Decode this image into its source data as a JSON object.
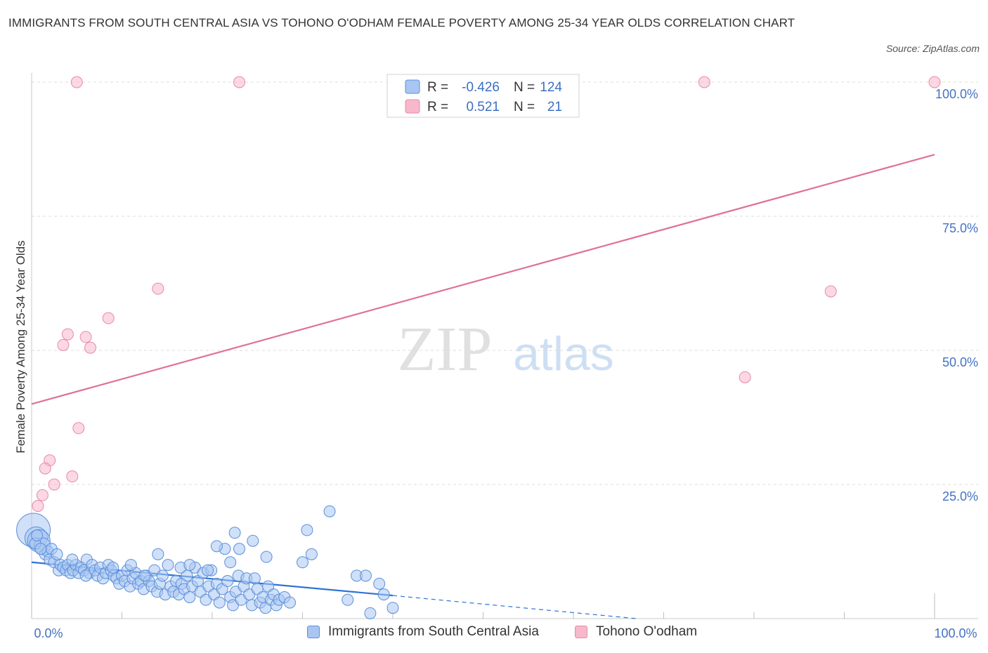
{
  "title": "IMMIGRANTS FROM SOUTH CENTRAL ASIA VS TOHONO O'ODHAM FEMALE POVERTY AMONG 25-34 YEAR OLDS CORRELATION CHART",
  "source": "Source: ZipAtlas.com",
  "watermark": {
    "zip": "ZIP",
    "atlas": "atlas"
  },
  "colors": {
    "blue_fill": "#a9c6f2",
    "blue_stroke": "#5b8fd9",
    "blue_line": "#2e74d6",
    "pink_fill": "#f7b8cc",
    "pink_stroke": "#e98aa8",
    "pink_line": "#e0709a",
    "axis_label": "#4472c4",
    "grid": "#dcdcdc"
  },
  "legend": {
    "rows": [
      {
        "r_label": "R =",
        "r_value": "-0.426",
        "n_label": "N =",
        "n_value": "124"
      },
      {
        "r_label": "R =",
        "r_value": "0.521",
        "n_label": "N =",
        "n_value": "21"
      }
    ]
  },
  "chart_data": {
    "type": "scatter",
    "title": "IMMIGRANTS FROM SOUTH CENTRAL ASIA VS TOHONO O'ODHAM FEMALE POVERTY AMONG 25-34 YEAR OLDS CORRELATION CHART",
    "xlabel": "",
    "ylabel": "Female Poverty Among 25-34 Year Olds",
    "xlim": [
      0,
      100
    ],
    "ylim": [
      0,
      100
    ],
    "x_tick_labels": {
      "min": "0.0%",
      "max": "100.0%"
    },
    "y_ticks": [
      {
        "value": 25,
        "label": "25.0%"
      },
      {
        "value": 50,
        "label": "50.0%"
      },
      {
        "value": 75,
        "label": "75.0%"
      },
      {
        "value": 100,
        "label": "100.0%"
      }
    ],
    "grid": true,
    "series": [
      {
        "name": "Immigrants from South Central Asia",
        "color": "blue",
        "r": -0.426,
        "n": 124,
        "trend": {
          "x0": 0,
          "y0": 10.5,
          "x1": 40,
          "y1": 4.3,
          "dash_to_x": 67,
          "dash_to_y": 0
        },
        "points": [
          [
            0.2,
            16.5,
            3
          ],
          [
            0.5,
            15,
            2
          ],
          [
            0.8,
            14.5,
            2
          ],
          [
            1.2,
            13.5,
            1.5
          ],
          [
            1.5,
            12,
            1
          ],
          [
            1.8,
            12.5,
            1
          ],
          [
            2.0,
            11,
            1
          ],
          [
            2.2,
            13,
            1
          ],
          [
            0.4,
            14,
            1
          ],
          [
            0.6,
            15.5,
            1
          ],
          [
            1.0,
            13,
            1
          ],
          [
            2.5,
            10.5,
            1
          ],
          [
            2.8,
            12,
            1
          ],
          [
            3.0,
            9,
            1
          ],
          [
            3.2,
            10,
            1
          ],
          [
            3.5,
            9.5,
            1
          ],
          [
            3.8,
            9,
            1
          ],
          [
            4.0,
            10,
            1
          ],
          [
            4.3,
            8.5,
            1
          ],
          [
            4.6,
            9,
            1
          ],
          [
            4.9,
            10,
            1
          ],
          [
            5.2,
            8.5,
            1
          ],
          [
            5.5,
            9.5,
            1
          ],
          [
            5.8,
            9,
            1
          ],
          [
            6.1,
            11,
            1
          ],
          [
            6.4,
            8.5,
            1
          ],
          [
            6.7,
            10,
            1
          ],
          [
            7.0,
            9,
            1
          ],
          [
            7.3,
            8,
            1
          ],
          [
            7.6,
            9.5,
            1
          ],
          [
            7.9,
            7.5,
            1
          ],
          [
            8.2,
            8.5,
            1
          ],
          [
            8.5,
            10,
            1
          ],
          [
            8.8,
            9,
            1
          ],
          [
            9.1,
            8,
            1
          ],
          [
            9.4,
            7.5,
            1
          ],
          [
            9.7,
            6.5,
            1
          ],
          [
            10.0,
            8,
            1
          ],
          [
            10.3,
            7,
            1
          ],
          [
            10.6,
            9,
            1
          ],
          [
            10.9,
            6,
            1
          ],
          [
            11.2,
            7.5,
            1
          ],
          [
            11.5,
            8.5,
            1
          ],
          [
            11.8,
            6.5,
            1
          ],
          [
            12.1,
            7,
            1
          ],
          [
            12.4,
            5.5,
            1
          ],
          [
            12.7,
            8,
            1
          ],
          [
            13.0,
            7,
            1
          ],
          [
            13.3,
            6,
            1
          ],
          [
            13.6,
            9,
            1
          ],
          [
            13.9,
            5,
            1
          ],
          [
            14.2,
            6.5,
            1
          ],
          [
            14.5,
            8,
            1
          ],
          [
            14.8,
            4.5,
            1
          ],
          [
            15.1,
            10,
            1
          ],
          [
            15.4,
            6,
            1
          ],
          [
            15.7,
            5,
            1
          ],
          [
            16.0,
            7,
            1
          ],
          [
            16.3,
            4.5,
            1
          ],
          [
            16.6,
            6.5,
            1
          ],
          [
            16.9,
            5.5,
            1
          ],
          [
            17.2,
            8,
            1
          ],
          [
            17.5,
            4,
            1
          ],
          [
            17.8,
            6,
            1
          ],
          [
            18.1,
            9.5,
            1
          ],
          [
            18.4,
            7,
            1
          ],
          [
            18.7,
            5,
            1
          ],
          [
            19.0,
            8.5,
            1
          ],
          [
            19.3,
            3.5,
            1
          ],
          [
            19.6,
            6,
            1
          ],
          [
            19.9,
            9,
            1
          ],
          [
            20.2,
            4.5,
            1
          ],
          [
            20.5,
            6.5,
            1
          ],
          [
            20.8,
            3,
            1
          ],
          [
            21.1,
            5.5,
            1
          ],
          [
            21.4,
            13,
            1
          ],
          [
            21.7,
            7,
            1
          ],
          [
            22.0,
            4,
            1
          ],
          [
            22.3,
            2.5,
            1
          ],
          [
            22.6,
            5,
            1
          ],
          [
            22.9,
            8,
            1
          ],
          [
            23.2,
            3.5,
            1
          ],
          [
            23.5,
            6,
            1
          ],
          [
            23.8,
            7.5,
            1
          ],
          [
            24.1,
            4.5,
            1
          ],
          [
            24.4,
            2.5,
            1
          ],
          [
            24.7,
            7.5,
            1
          ],
          [
            25.0,
            5.5,
            1
          ],
          [
            25.3,
            3,
            1
          ],
          [
            25.6,
            4,
            1
          ],
          [
            25.9,
            2,
            1
          ],
          [
            26.2,
            6,
            1
          ],
          [
            26.5,
            3.5,
            1
          ],
          [
            26.8,
            4.5,
            1
          ],
          [
            27.1,
            2.5,
            1
          ],
          [
            27.4,
            3.5,
            1
          ],
          [
            28.0,
            4,
            1
          ],
          [
            28.6,
            3,
            1
          ],
          [
            22.0,
            10.5,
            1
          ],
          [
            23.0,
            13,
            1
          ],
          [
            26.0,
            11.5,
            1
          ],
          [
            11.0,
            10,
            1
          ],
          [
            14.0,
            12,
            1
          ],
          [
            16.5,
            9.5,
            1
          ],
          [
            17.5,
            10,
            1
          ],
          [
            19.5,
            9,
            1
          ],
          [
            20.5,
            13.5,
            1
          ],
          [
            22.5,
            16,
            1
          ],
          [
            24.5,
            14.5,
            1
          ],
          [
            30.0,
            10.5,
            1
          ],
          [
            30.5,
            16.5,
            1
          ],
          [
            31.0,
            12,
            1
          ],
          [
            33.0,
            20,
            1
          ],
          [
            36.0,
            8,
            1
          ],
          [
            35.0,
            3.5,
            1
          ],
          [
            37.0,
            8,
            1
          ],
          [
            37.5,
            1,
            1
          ],
          [
            38.5,
            6.5,
            1
          ],
          [
            39.0,
            4.5,
            1
          ],
          [
            40.0,
            2,
            1
          ],
          [
            12.5,
            8,
            1
          ],
          [
            9.0,
            9.5,
            1
          ],
          [
            6.0,
            8,
            1
          ],
          [
            4.5,
            11,
            1
          ]
        ]
      },
      {
        "name": "Tohono O'odham",
        "color": "pink",
        "r": 0.521,
        "n": 21,
        "trend": {
          "x0": 0,
          "y0": 40,
          "x1": 100,
          "y1": 86.5
        },
        "points": [
          [
            5,
            100
          ],
          [
            23,
            100
          ],
          [
            74.5,
            100
          ],
          [
            100,
            100
          ],
          [
            14,
            61.5
          ],
          [
            88.5,
            61
          ],
          [
            8.5,
            56
          ],
          [
            4,
            53
          ],
          [
            6,
            52.5
          ],
          [
            3.5,
            51
          ],
          [
            6.5,
            50.5
          ],
          [
            79,
            45
          ],
          [
            5.2,
            35.5
          ],
          [
            2.0,
            29.5
          ],
          [
            1.5,
            28
          ],
          [
            4.5,
            26.5
          ],
          [
            2.5,
            25
          ],
          [
            1.2,
            23
          ],
          [
            0.7,
            21
          ]
        ]
      }
    ]
  },
  "bottom_legend": [
    {
      "label": "Immigrants from South Central Asia"
    },
    {
      "label": "Tohono O'odham"
    }
  ]
}
